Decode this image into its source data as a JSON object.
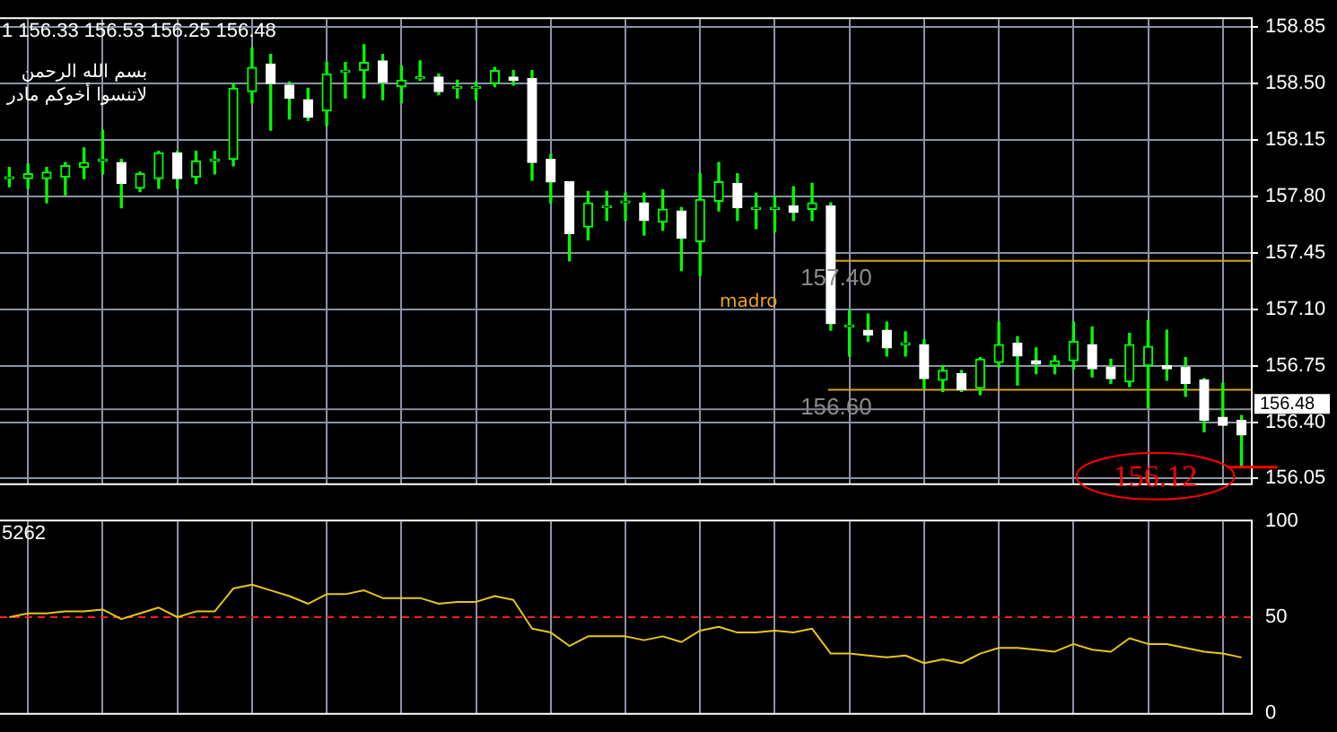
{
  "chart_data": [
    {
      "type": "candlestick",
      "title": "1 156.33 156.53 156.25 156.48",
      "color": "#00ff00",
      "categories": [
        null,
        null,
        null,
        null,
        null,
        null,
        null,
        null,
        null,
        null,
        null,
        null,
        null,
        null,
        null,
        null,
        null,
        null,
        null,
        null,
        null,
        null,
        null,
        null,
        null,
        null,
        null,
        null,
        null,
        null,
        null,
        null,
        null,
        null,
        null,
        null,
        null,
        null,
        null,
        null,
        null,
        null,
        null,
        null,
        null,
        null,
        null,
        null,
        null,
        null,
        null,
        null,
        null,
        null,
        null,
        null,
        null,
        null,
        null,
        null,
        null,
        null,
        null,
        null,
        null,
        null,
        null
      ],
      "ohlc": [
        [
          157.91,
          157.98,
          157.86,
          157.91
        ],
        [
          157.91,
          158.0,
          157.85,
          157.94
        ],
        [
          157.91,
          157.98,
          157.76,
          157.95
        ],
        [
          157.92,
          158.01,
          157.81,
          157.99
        ],
        [
          157.98,
          158.1,
          157.91,
          158.01
        ],
        [
          158.02,
          158.21,
          157.94,
          158.02
        ],
        [
          158.01,
          158.03,
          157.73,
          157.88
        ],
        [
          157.85,
          157.95,
          157.83,
          157.94
        ],
        [
          157.91,
          158.08,
          157.85,
          158.07
        ],
        [
          158.07,
          158.08,
          157.85,
          157.91
        ],
        [
          157.92,
          158.08,
          157.88,
          158.02
        ],
        [
          158.02,
          158.08,
          157.94,
          158.02
        ],
        [
          158.03,
          158.5,
          157.99,
          158.47
        ],
        [
          158.45,
          158.72,
          158.38,
          158.6
        ],
        [
          158.62,
          158.68,
          158.21,
          158.5
        ],
        [
          158.49,
          158.51,
          158.28,
          158.41
        ],
        [
          158.4,
          158.47,
          158.27,
          158.29
        ],
        [
          158.33,
          158.63,
          158.24,
          158.56
        ],
        [
          158.57,
          158.63,
          158.41,
          158.57
        ],
        [
          158.58,
          158.74,
          158.41,
          158.63
        ],
        [
          158.64,
          158.68,
          158.4,
          158.51
        ],
        [
          158.48,
          158.61,
          158.38,
          158.52
        ],
        [
          158.53,
          158.64,
          158.52,
          158.53
        ],
        [
          158.54,
          158.56,
          158.43,
          158.45
        ],
        [
          158.47,
          158.52,
          158.41,
          158.47
        ],
        [
          158.47,
          158.51,
          158.4,
          158.47
        ],
        [
          158.5,
          158.6,
          158.48,
          158.58
        ],
        [
          158.54,
          158.58,
          158.49,
          158.52
        ],
        [
          158.53,
          158.58,
          157.9,
          158.01
        ],
        [
          158.03,
          158.06,
          157.76,
          157.89
        ],
        [
          157.89,
          157.89,
          157.4,
          157.57
        ],
        [
          157.61,
          157.83,
          157.53,
          157.76
        ],
        [
          157.73,
          157.83,
          157.65,
          157.73
        ],
        [
          157.76,
          157.82,
          157.65,
          157.76
        ],
        [
          157.76,
          157.82,
          157.56,
          157.65
        ],
        [
          157.64,
          157.84,
          157.59,
          157.72
        ],
        [
          157.71,
          157.73,
          157.34,
          157.54
        ],
        [
          157.52,
          157.94,
          157.31,
          157.78
        ],
        [
          157.77,
          158.01,
          157.71,
          157.89
        ],
        [
          157.88,
          157.94,
          157.65,
          157.73
        ],
        [
          157.72,
          157.82,
          157.6,
          157.72
        ],
        [
          157.72,
          157.8,
          157.58,
          157.72
        ],
        [
          157.74,
          157.86,
          157.65,
          157.7
        ],
        [
          157.72,
          157.88,
          157.65,
          157.76
        ],
        [
          157.74,
          157.76,
          156.97,
          157.01
        ],
        [
          156.99,
          157.09,
          156.81,
          156.99
        ],
        [
          156.97,
          157.07,
          156.9,
          156.94
        ],
        [
          156.97,
          157.02,
          156.81,
          156.86
        ],
        [
          156.88,
          156.96,
          156.81,
          156.88
        ],
        [
          156.88,
          156.91,
          156.61,
          156.67
        ],
        [
          156.66,
          156.75,
          156.59,
          156.72
        ],
        [
          156.7,
          156.72,
          156.59,
          156.6
        ],
        [
          156.61,
          156.8,
          156.57,
          156.79
        ],
        [
          156.77,
          157.02,
          156.74,
          156.88
        ],
        [
          156.89,
          156.93,
          156.63,
          156.81
        ],
        [
          156.78,
          156.86,
          156.7,
          156.76
        ],
        [
          156.75,
          156.81,
          156.7,
          156.78
        ],
        [
          156.78,
          157.02,
          156.73,
          156.9
        ],
        [
          156.88,
          156.99,
          156.68,
          156.73
        ],
        [
          156.74,
          156.79,
          156.64,
          156.67
        ],
        [
          156.65,
          156.95,
          156.62,
          156.88
        ],
        [
          156.75,
          157.03,
          156.49,
          156.87
        ],
        [
          156.75,
          156.97,
          156.66,
          156.73
        ],
        [
          156.74,
          156.8,
          156.56,
          156.64
        ],
        [
          156.66,
          156.67,
          156.34,
          156.41
        ],
        [
          156.43,
          156.64,
          156.38,
          156.38
        ],
        [
          156.41,
          156.44,
          156.12,
          156.32
        ]
      ],
      "colors": [
        "#00ff00",
        "#00ff00",
        "#00ff00",
        "#00ff00",
        "#00ff00",
        "#00ff00",
        "#ffffff",
        "#00ff00",
        "#00ff00",
        "#ffffff",
        "#00ff00",
        "#00ff00",
        "#00ff00",
        "#00ff00",
        "#ffffff",
        "#ffffff",
        "#ffffff",
        "#00ff00",
        "#00ff00",
        "#00ff00",
        "#ffffff",
        "#00ff00",
        "#00ff00",
        "#ffffff",
        "#00ff00",
        "#00ff00",
        "#00ff00",
        "#ffffff",
        "#ffffff",
        "#ffffff",
        "#ffffff",
        "#00ff00",
        "#00ff00",
        "#00ff00",
        "#ffffff",
        "#00ff00",
        "#ffffff",
        "#00ff00",
        "#00ff00",
        "#ffffff",
        "#00ff00",
        "#00ff00",
        "#ffffff",
        "#00ff00",
        "#ffffff",
        "#00ff00",
        "#ffffff",
        "#ffffff",
        "#00ff00",
        "#ffffff",
        "#00ff00",
        "#ffffff",
        "#00ff00",
        "#00ff00",
        "#ffffff",
        "#ffffff",
        "#00ff00",
        "#00ff00",
        "#ffffff",
        "#ffffff",
        "#00ff00",
        "#00ff00",
        "#ffffff",
        "#ffffff",
        "#ffffff",
        "#ffffff",
        "#ffffff"
      ],
      "ylim": [
        156.02,
        158.9
      ],
      "yticks": [
        156.05,
        {
          "value": 156.4,
          "label": "156.40"
        },
        156.75,
        {
          "value": 157.1,
          "label": "157.10"
        },
        157.45,
        {
          "value": 157.8,
          "label": "157.80"
        },
        158.15,
        {
          "value": 158.5,
          "label": "158.50"
        },
        158.85
      ],
      "grid": true,
      "ref_lines": [
        {
          "axis": "y",
          "value": 157.4,
          "label": "157.40",
          "color": "#d9a21b"
        },
        {
          "axis": "y",
          "value": 156.6,
          "label": "156.60",
          "color": "#d9a21b"
        },
        {
          "axis": "y",
          "value": 156.48,
          "label": "156.48",
          "color": "#8c8c9c"
        }
      ],
      "annotations": [
        "بسم الله الرحمن",
        "لاتنسوا أخوكم مادر",
        "madro",
        "156.12"
      ]
    },
    {
      "type": "line",
      "categories": [
        null,
        null,
        null,
        null,
        null,
        null,
        null,
        null,
        null,
        null,
        null,
        null,
        null,
        null,
        null,
        null,
        null,
        null,
        null,
        null,
        null,
        null,
        null,
        null,
        null,
        null,
        null,
        null,
        null,
        null,
        null,
        null,
        null,
        null,
        null,
        null,
        null,
        null,
        null,
        null,
        null,
        null,
        null,
        null,
        null,
        null,
        null,
        null,
        null,
        null,
        null,
        null,
        null,
        null,
        null,
        null,
        null,
        null,
        null,
        null,
        null,
        null,
        null,
        null,
        null,
        null,
        null
      ],
      "series": [
        {
          "color": "#e6c619",
          "values": [
            50,
            52,
            52,
            53,
            53,
            54,
            49,
            52,
            55,
            50,
            53,
            53,
            65,
            67,
            64,
            61,
            57,
            62,
            62,
            64,
            60,
            60,
            60,
            57,
            58,
            58,
            61,
            59,
            44,
            42,
            35,
            40,
            40,
            40,
            38,
            40,
            37,
            43,
            45,
            42,
            42,
            43,
            42,
            44,
            31,
            31,
            30,
            29,
            30,
            26,
            28,
            26,
            31,
            34,
            34,
            33,
            32,
            36,
            33,
            32,
            39,
            36,
            36,
            34,
            32,
            31,
            29
          ]
        }
      ],
      "ylim": [
        0,
        100
      ],
      "yticks": [
        0,
        50,
        100
      ],
      "grid": "x",
      "ref_lines": [
        {
          "axis": "y",
          "value": 50,
          "color": "#ff2020",
          "line_style": "dashed"
        }
      ],
      "annotations": [
        "5262"
      ]
    }
  ]
}
